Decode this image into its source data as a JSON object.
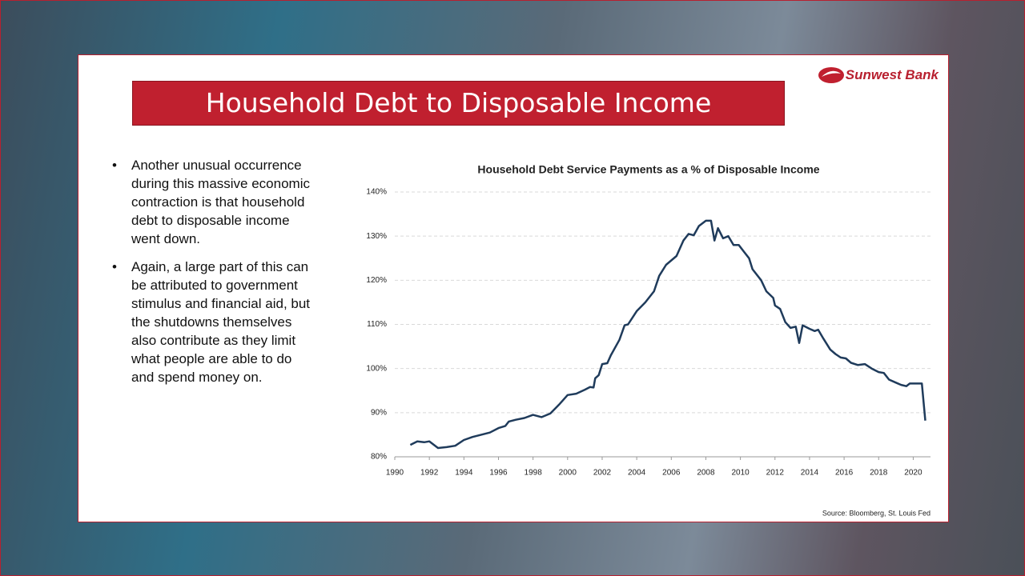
{
  "header": {
    "title": "Household Debt to Disposable Income",
    "logo": "Sunwest Bank"
  },
  "bullets": [
    "Another unusual occurrence during this massive economic contraction is that household debt to disposable income went down.",
    "Again, a large part of this can be attributed to government stimulus and financial aid, but the shutdowns themselves also contribute as they limit what people are able to do and spend money on."
  ],
  "chart_data": {
    "type": "line",
    "title": "Household Debt Service Payments as a % of Disposable Income",
    "source": "Source: Bloomberg, St. Louis Fed",
    "color": "#1f3b5b",
    "grid": true,
    "x": [
      1990.9,
      1991.3,
      1991.7,
      1992.0,
      1992.5,
      1993.0,
      1993.5,
      1994.0,
      1994.5,
      1995.0,
      1995.5,
      1996.0,
      1996.4,
      1996.6,
      1997.0,
      1997.5,
      1998.0,
      1998.5,
      1999.0,
      1999.5,
      2000.0,
      2000.5,
      2001.0,
      2001.3,
      2001.5,
      2001.6,
      2001.8,
      2002.0,
      2002.3,
      2002.5,
      2003.0,
      2003.3,
      2003.5,
      2004.0,
      2004.5,
      2005.0,
      2005.3,
      2005.7,
      2006.0,
      2006.3,
      2006.7,
      2007.0,
      2007.3,
      2007.6,
      2008.0,
      2008.3,
      2008.5,
      2008.7,
      2009.0,
      2009.3,
      2009.6,
      2009.9,
      2010.2,
      2010.5,
      2010.7,
      2011.2,
      2011.5,
      2011.9,
      2012.0,
      2012.3,
      2012.6,
      2012.9,
      2013.2,
      2013.4,
      2013.6,
      2014.0,
      2014.3,
      2014.5,
      2014.8,
      2015.2,
      2015.5,
      2015.8,
      2016.1,
      2016.4,
      2016.8,
      2017.2,
      2017.6,
      2018.0,
      2018.3,
      2018.6,
      2019.0,
      2019.3,
      2019.6,
      2019.8,
      2020.1,
      2020.5,
      2020.7
    ],
    "values": [
      82.7,
      83.5,
      83.3,
      83.5,
      82.0,
      82.2,
      82.5,
      83.8,
      84.5,
      85.0,
      85.5,
      86.5,
      87.0,
      88.0,
      88.4,
      88.8,
      89.5,
      89.0,
      89.8,
      91.8,
      94.0,
      94.3,
      95.2,
      95.8,
      95.7,
      97.8,
      98.5,
      101.0,
      101.2,
      103.0,
      106.5,
      109.8,
      110.0,
      113.0,
      115.0,
      117.5,
      121.0,
      123.5,
      124.5,
      125.5,
      129.0,
      130.5,
      130.2,
      132.3,
      133.5,
      133.5,
      129.0,
      131.8,
      129.5,
      130.0,
      128.0,
      128.0,
      126.5,
      125.0,
      122.5,
      120.0,
      117.5,
      116.0,
      114.3,
      113.5,
      110.5,
      109.2,
      109.5,
      105.8,
      109.8,
      109.0,
      108.5,
      108.8,
      106.8,
      104.3,
      103.3,
      102.5,
      102.3,
      101.3,
      100.8,
      101.0,
      100.0,
      99.2,
      99.0,
      97.5,
      96.8,
      96.3,
      96.0,
      96.6,
      96.6,
      96.6,
      88.2
    ],
    "xlim": [
      1990,
      2021
    ],
    "xticks": [
      1990,
      1992,
      1994,
      1996,
      1998,
      2000,
      2002,
      2004,
      2006,
      2008,
      2010,
      2012,
      2014,
      2016,
      2018,
      2020
    ],
    "ylim": [
      80,
      140
    ],
    "yticks": [
      {
        "value": 80,
        "label": "80%"
      },
      {
        "value": 90,
        "label": "90%"
      },
      {
        "value": 100,
        "label": "100%"
      },
      {
        "value": 110,
        "label": "110%"
      },
      {
        "value": 120,
        "label": "120%"
      },
      {
        "value": 130,
        "label": "130%"
      },
      {
        "value": 140,
        "label": "140%"
      }
    ]
  }
}
